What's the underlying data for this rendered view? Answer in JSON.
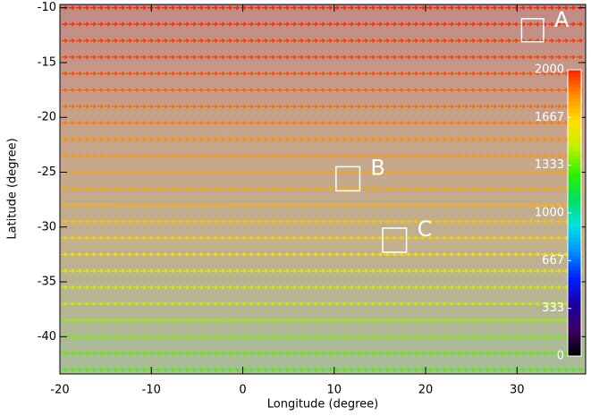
{
  "chart_data": {
    "type": "vector-field",
    "xlabel": "Longitude (degree)",
    "ylabel": "Latitude (degree)",
    "xlim": [
      -20,
      37.5
    ],
    "ylim": [
      -43.4,
      -9.7
    ],
    "xticks": [
      -20,
      -10,
      0,
      10,
      20,
      30
    ],
    "yticks": [
      -40,
      -35,
      -30,
      -25,
      -20,
      -15,
      -10
    ],
    "colorbar": {
      "clim": [
        0,
        2000
      ],
      "ticks": [
        0,
        333,
        667,
        1000,
        1333,
        1667,
        2000
      ],
      "colormap": [
        "#000000",
        "#3a0060",
        "#1a00a0",
        "#0020ff",
        "#0090ff",
        "#00e0e0",
        "#00e060",
        "#30f000",
        "#c0f000",
        "#ffe000",
        "#ff9000",
        "#ff2000"
      ]
    },
    "field": {
      "lat": [
        -10,
        -11.5,
        -13,
        -14.5,
        -16,
        -17.5,
        -19,
        -20.5,
        -22,
        -23.5,
        -25,
        -26.5,
        -28,
        -29.5,
        -31,
        -32.5,
        -34,
        -35.5,
        -37,
        -38.5,
        -40,
        -41.5,
        -43
      ],
      "speed": [
        2000,
        1980,
        1960,
        1950,
        1930,
        1900,
        1880,
        1850,
        1820,
        1800,
        1780,
        1760,
        1740,
        1700,
        1670,
        1620,
        1560,
        1500,
        1450,
        1400,
        1360,
        1330,
        1300
      ]
    },
    "regions": [
      {
        "label": "A",
        "lon": [
          30.5,
          32.9
        ],
        "lat": [
          -11.0,
          -13.1
        ]
      },
      {
        "label": "B",
        "lon": [
          10.2,
          12.8
        ],
        "lat": [
          -24.5,
          -26.7
        ]
      },
      {
        "label": "C",
        "lon": [
          15.3,
          17.9
        ],
        "lat": [
          -30.1,
          -32.3
        ]
      }
    ]
  }
}
